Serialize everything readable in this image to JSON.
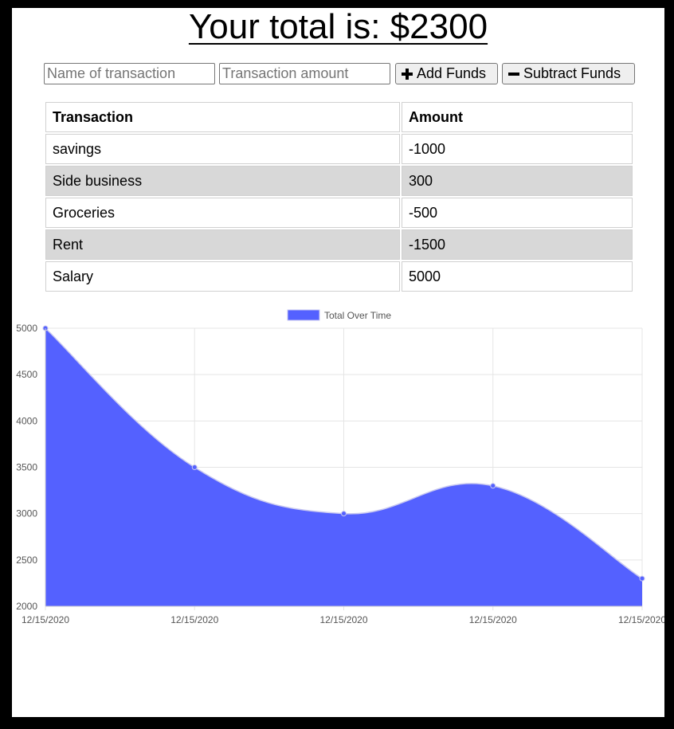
{
  "header": {
    "total_prefix": "Your total is: $",
    "total_value": "2300"
  },
  "form": {
    "name_placeholder": "Name of transaction",
    "amount_placeholder": "Transaction amount",
    "add_label": "Add Funds",
    "subtract_label": "Subtract Funds"
  },
  "table": {
    "headers": [
      "Transaction",
      "Amount"
    ],
    "rows": [
      {
        "name": "savings",
        "amount": "-1000"
      },
      {
        "name": "Side business",
        "amount": "300"
      },
      {
        "name": "Groceries",
        "amount": "-500"
      },
      {
        "name": "Rent",
        "amount": "-1500"
      },
      {
        "name": "Salary",
        "amount": "5000"
      }
    ]
  },
  "chart_data": {
    "type": "area",
    "title": "",
    "xlabel": "",
    "ylabel": "",
    "x": [
      "12/15/2020",
      "12/15/2020",
      "12/15/2020",
      "12/15/2020",
      "12/15/2020"
    ],
    "series": [
      {
        "name": "Total Over Time",
        "values": [
          5000,
          3500,
          3000,
          3300,
          2300
        ],
        "color": "#5461ff"
      }
    ],
    "ylim": [
      2000,
      5000
    ],
    "yticks": [
      2000,
      2500,
      3000,
      3500,
      4000,
      4500,
      5000
    ],
    "grid": true,
    "legend_position": "top"
  }
}
